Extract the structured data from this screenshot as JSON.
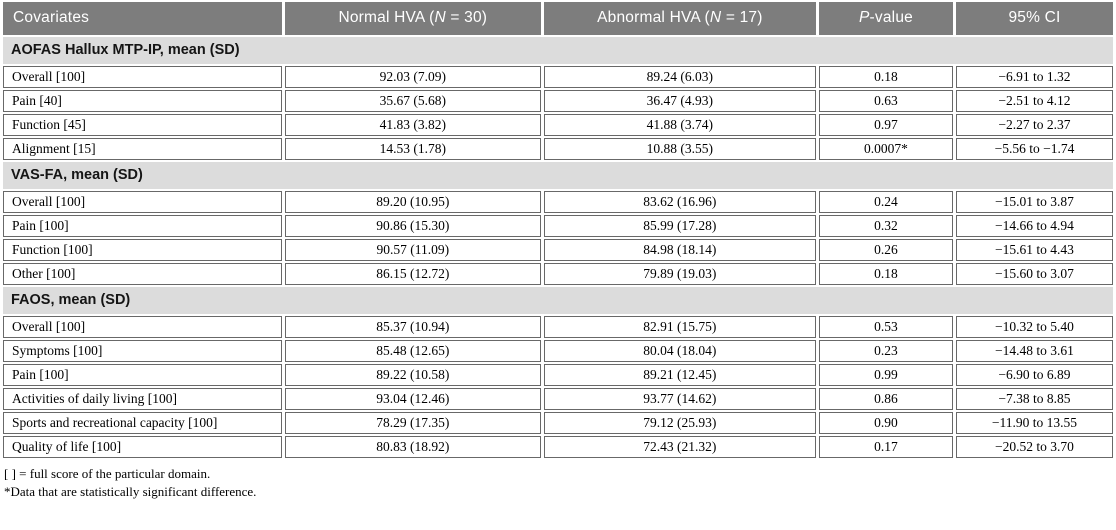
{
  "colors": {
    "header_bg": "#7d7d7d",
    "section_bg": "#dcdcdc",
    "cell_border": "#686868",
    "header_text": "#ffffff"
  },
  "table": {
    "columns": [
      {
        "key": "covariate",
        "align": "left",
        "label_parts": [
          {
            "t": "Covariates"
          }
        ]
      },
      {
        "key": "normal",
        "align": "center",
        "label_parts": [
          {
            "t": "Normal HVA ("
          },
          {
            "t": "N",
            "i": true
          },
          {
            "t": " = 30)"
          }
        ]
      },
      {
        "key": "abnormal",
        "align": "center",
        "label_parts": [
          {
            "t": "Abnormal HVA ("
          },
          {
            "t": "N",
            "i": true
          },
          {
            "t": " = 17)"
          }
        ]
      },
      {
        "key": "p",
        "align": "center",
        "label_parts": [
          {
            "t": "P",
            "i": true
          },
          {
            "t": "-value"
          }
        ]
      },
      {
        "key": "ci",
        "align": "center",
        "label_parts": [
          {
            "t": "95% CI"
          }
        ]
      }
    ],
    "sections": [
      {
        "title": "AOFAS Hallux MTP-IP, mean (SD)",
        "rows": [
          {
            "covariate": "Overall [100]",
            "normal": "92.03 (7.09)",
            "abnormal": "89.24 (6.03)",
            "p": "0.18",
            "ci": "−6.91 to 1.32"
          },
          {
            "covariate": "Pain [40]",
            "normal": "35.67 (5.68)",
            "abnormal": "36.47 (4.93)",
            "p": "0.63",
            "ci": "−2.51 to 4.12"
          },
          {
            "covariate": "Function [45]",
            "normal": "41.83 (3.82)",
            "abnormal": "41.88 (3.74)",
            "p": "0.97",
            "ci": "−2.27 to 2.37"
          },
          {
            "covariate": "Alignment [15]",
            "normal": "14.53 (1.78)",
            "abnormal": "10.88 (3.55)",
            "p": "0.0007*",
            "ci": "−5.56 to −1.74"
          }
        ]
      },
      {
        "title": "VAS-FA, mean (SD)",
        "rows": [
          {
            "covariate": "Overall [100]",
            "normal": "89.20 (10.95)",
            "abnormal": "83.62 (16.96)",
            "p": "0.24",
            "ci": "−15.01 to 3.87"
          },
          {
            "covariate": "Pain [100]",
            "normal": "90.86 (15.30)",
            "abnormal": "85.99 (17.28)",
            "p": "0.32",
            "ci": "−14.66 to 4.94"
          },
          {
            "covariate": "Function [100]",
            "normal": "90.57 (11.09)",
            "abnormal": "84.98 (18.14)",
            "p": "0.26",
            "ci": "−15.61 to 4.43"
          },
          {
            "covariate": "Other [100]",
            "normal": "86.15 (12.72)",
            "abnormal": "79.89 (19.03)",
            "p": "0.18",
            "ci": "−15.60 to 3.07"
          }
        ]
      },
      {
        "title": "FAOS, mean (SD)",
        "rows": [
          {
            "covariate": "Overall [100]",
            "normal": "85.37 (10.94)",
            "abnormal": "82.91 (15.75)",
            "p": "0.53",
            "ci": "−10.32 to 5.40"
          },
          {
            "covariate": "Symptoms [100]",
            "normal": "85.48 (12.65)",
            "abnormal": "80.04 (18.04)",
            "p": "0.23",
            "ci": "−14.48 to 3.61"
          },
          {
            "covariate": "Pain [100]",
            "normal": "89.22 (10.58)",
            "abnormal": "89.21 (12.45)",
            "p": "0.99",
            "ci": "−6.90 to 6.89"
          },
          {
            "covariate": "Activities of daily living [100]",
            "normal": "93.04 (12.46)",
            "abnormal": "93.77 (14.62)",
            "p": "0.86",
            "ci": "−7.38 to 8.85"
          },
          {
            "covariate": "Sports and recreational capacity [100]",
            "normal": "78.29 (17.35)",
            "abnormal": "79.12 (25.93)",
            "p": "0.90",
            "ci": "−11.90 to 13.55"
          },
          {
            "covariate": "Quality of life [100]",
            "normal": "80.83 (18.92)",
            "abnormal": "72.43 (21.32)",
            "p": "0.17",
            "ci": "−20.52 to 3.70"
          }
        ]
      }
    ],
    "footnotes": [
      "[ ] = full score of the particular domain.",
      "*Data that are statistically significant difference."
    ]
  }
}
